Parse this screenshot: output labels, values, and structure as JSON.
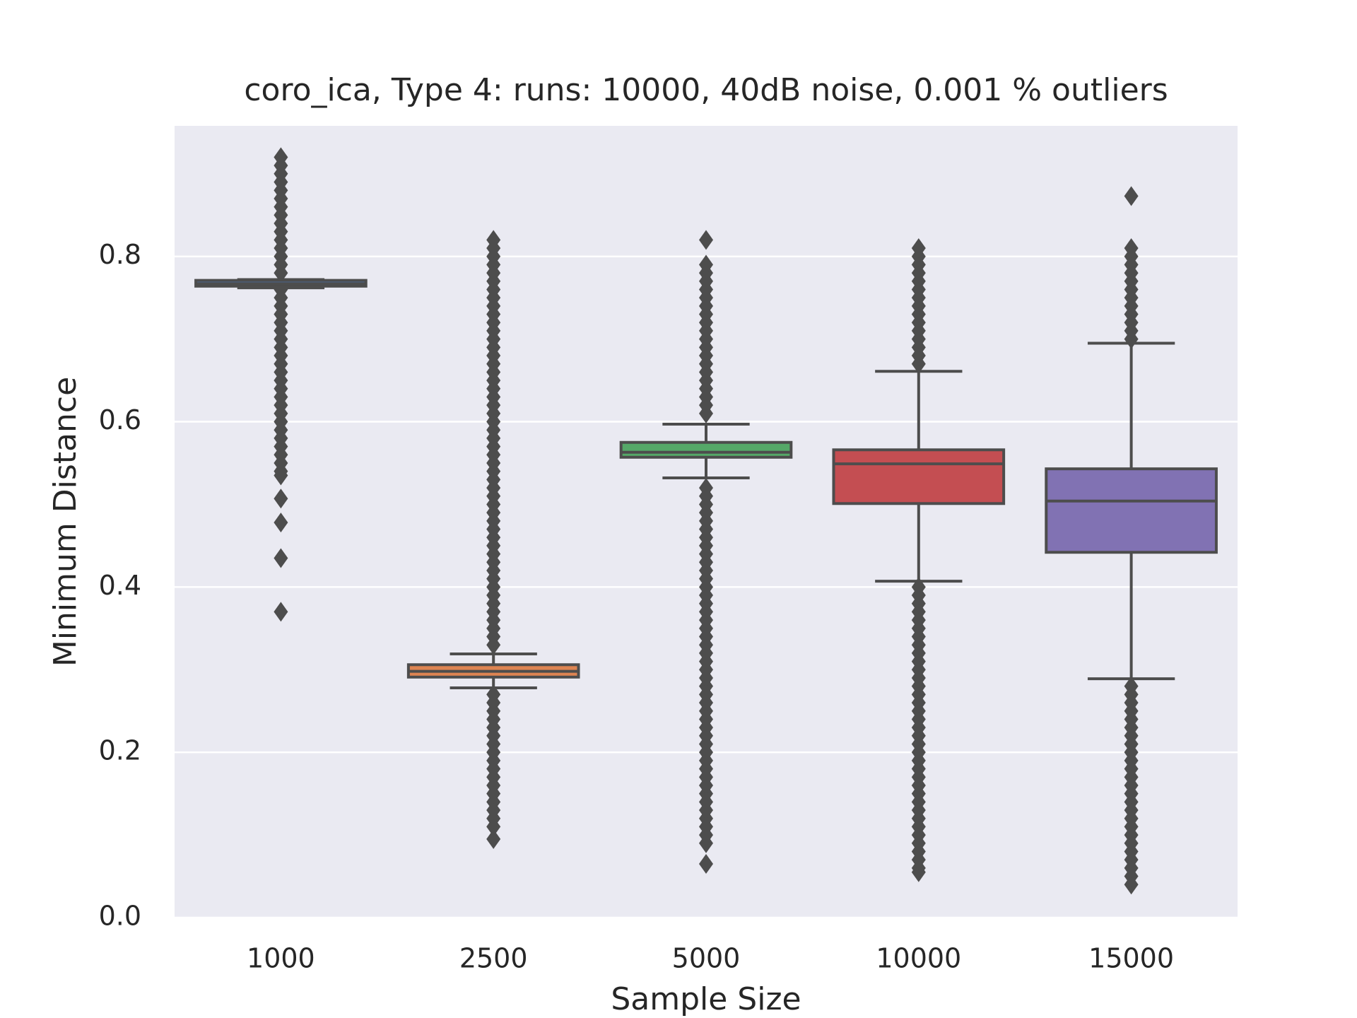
{
  "chart_data": {
    "type": "box",
    "title": "coro_ica,  Type 4:  runs: 10000, 40dB noise, 0.001 % outliers",
    "xlabel": "Sample Size",
    "ylabel": "Minimum Distance",
    "categories": [
      "1000",
      "2500",
      "5000",
      "10000",
      "15000"
    ],
    "colors": [
      "#4c72b0",
      "#dd8452",
      "#55a868",
      "#c44e52",
      "#8172b3"
    ],
    "line_color": "#4d4d4d",
    "ylim": [
      0,
      0.958
    ],
    "yticks": [
      {
        "value": 0,
        "label": "0.0"
      },
      0.2,
      0.4,
      0.6,
      0.8
    ],
    "grid": true,
    "boxes": [
      {
        "whisker_low": 0.762,
        "q1": 0.764,
        "median": 0.767,
        "q3": 0.771,
        "whisker_high": 0.772,
        "outliers": [
          0.37,
          0.435,
          0.478,
          0.507,
          0.535,
          0.54,
          0.55,
          0.56,
          0.57,
          0.58,
          0.59,
          0.6,
          0.61,
          0.62,
          0.63,
          0.64,
          0.65,
          0.66,
          0.67,
          0.68,
          0.69,
          0.7,
          0.71,
          0.72,
          0.73,
          0.74,
          0.75,
          0.76,
          0.78,
          0.79,
          0.8,
          0.81,
          0.82,
          0.83,
          0.84,
          0.85,
          0.86,
          0.87,
          0.88,
          0.89,
          0.9,
          0.91,
          0.92
        ]
      },
      {
        "whisker_low": 0.278,
        "q1": 0.291,
        "median": 0.298,
        "q3": 0.306,
        "whisker_high": 0.319,
        "outliers": [
          0.095,
          0.11,
          0.12,
          0.13,
          0.14,
          0.15,
          0.16,
          0.17,
          0.18,
          0.19,
          0.2,
          0.21,
          0.22,
          0.23,
          0.24,
          0.25,
          0.26,
          0.27,
          0.33,
          0.34,
          0.35,
          0.36,
          0.37,
          0.38,
          0.39,
          0.4,
          0.41,
          0.42,
          0.43,
          0.44,
          0.45,
          0.46,
          0.47,
          0.48,
          0.49,
          0.5,
          0.51,
          0.52,
          0.53,
          0.54,
          0.55,
          0.56,
          0.57,
          0.58,
          0.59,
          0.6,
          0.61,
          0.62,
          0.63,
          0.64,
          0.65,
          0.66,
          0.67,
          0.68,
          0.69,
          0.7,
          0.71,
          0.72,
          0.73,
          0.74,
          0.75,
          0.76,
          0.77,
          0.78,
          0.79,
          0.8,
          0.81,
          0.82
        ]
      },
      {
        "whisker_low": 0.532,
        "q1": 0.557,
        "median": 0.563,
        "q3": 0.575,
        "whisker_high": 0.597,
        "outliers": [
          0.065,
          0.09,
          0.1,
          0.11,
          0.12,
          0.13,
          0.14,
          0.15,
          0.16,
          0.17,
          0.18,
          0.19,
          0.2,
          0.21,
          0.22,
          0.23,
          0.24,
          0.25,
          0.26,
          0.27,
          0.28,
          0.29,
          0.3,
          0.31,
          0.32,
          0.33,
          0.34,
          0.35,
          0.36,
          0.37,
          0.38,
          0.39,
          0.4,
          0.41,
          0.42,
          0.43,
          0.44,
          0.45,
          0.46,
          0.47,
          0.48,
          0.49,
          0.5,
          0.51,
          0.52,
          0.61,
          0.62,
          0.63,
          0.64,
          0.65,
          0.66,
          0.67,
          0.68,
          0.69,
          0.7,
          0.71,
          0.72,
          0.73,
          0.74,
          0.75,
          0.76,
          0.77,
          0.78,
          0.79,
          0.82
        ]
      },
      {
        "whisker_low": 0.407,
        "q1": 0.501,
        "median": 0.549,
        "q3": 0.566,
        "whisker_high": 0.661,
        "outliers": [
          0.055,
          0.06,
          0.07,
          0.08,
          0.09,
          0.1,
          0.11,
          0.12,
          0.13,
          0.14,
          0.15,
          0.16,
          0.17,
          0.18,
          0.19,
          0.2,
          0.21,
          0.22,
          0.23,
          0.24,
          0.25,
          0.26,
          0.27,
          0.28,
          0.29,
          0.3,
          0.31,
          0.32,
          0.33,
          0.34,
          0.35,
          0.36,
          0.37,
          0.38,
          0.39,
          0.4,
          0.67,
          0.68,
          0.69,
          0.7,
          0.71,
          0.72,
          0.73,
          0.74,
          0.75,
          0.76,
          0.77,
          0.78,
          0.79,
          0.8,
          0.81
        ]
      },
      {
        "whisker_low": 0.289,
        "q1": 0.442,
        "median": 0.504,
        "q3": 0.543,
        "whisker_high": 0.695,
        "outliers": [
          0.04,
          0.05,
          0.06,
          0.07,
          0.08,
          0.09,
          0.1,
          0.11,
          0.12,
          0.13,
          0.14,
          0.15,
          0.16,
          0.17,
          0.18,
          0.19,
          0.2,
          0.21,
          0.22,
          0.23,
          0.24,
          0.25,
          0.26,
          0.27,
          0.28,
          0.7,
          0.71,
          0.72,
          0.73,
          0.74,
          0.75,
          0.76,
          0.77,
          0.78,
          0.79,
          0.8,
          0.81,
          0.873
        ]
      }
    ]
  }
}
